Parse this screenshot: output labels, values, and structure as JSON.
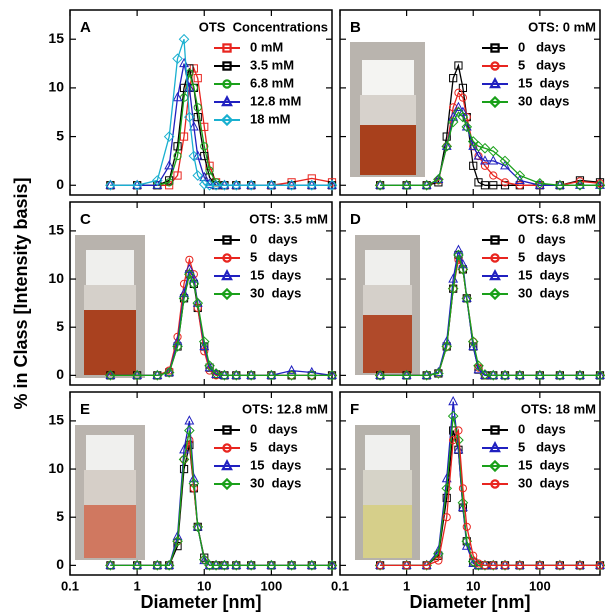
{
  "chart_data": [
    {
      "type": "line",
      "label": "A",
      "legend_title": "OTS  Concentrations",
      "log_x": true,
      "x": [
        0.4,
        1,
        2,
        3,
        4,
        5,
        6,
        7,
        8,
        10,
        12,
        15,
        20,
        30,
        50,
        100,
        200,
        400,
        800
      ],
      "xlim": [
        0.1,
        800
      ],
      "ylim": [
        -1,
        18
      ],
      "xticks": [
        0.1,
        1,
        10,
        100
      ],
      "yticks": [
        0,
        5,
        10,
        15
      ],
      "series": [
        {
          "name": "0 mM",
          "color": "#e8251f",
          "marker": "square",
          "values": [
            0,
            0,
            0,
            0,
            1,
            5,
            10,
            12,
            11,
            6,
            2,
            0.3,
            0,
            0,
            0,
            0,
            0.3,
            0.7,
            0.3
          ]
        },
        {
          "name": "3.5 mM",
          "color": "#000000",
          "marker": "square",
          "values": [
            0,
            0,
            0,
            0.5,
            4,
            10,
            12,
            10,
            7,
            3,
            0.8,
            0,
            0,
            0,
            0,
            0,
            0,
            0,
            0
          ]
        },
        {
          "name": "6.8 mM",
          "color": "#1aa01a",
          "marker": "circle",
          "values": [
            0,
            0,
            0,
            0.3,
            3,
            9,
            11.5,
            10,
            8,
            4,
            1.5,
            0.3,
            0,
            0,
            0,
            0,
            0,
            0,
            0
          ]
        },
        {
          "name": "12.8 mM",
          "color": "#2020c0",
          "marker": "triangle",
          "values": [
            0,
            0,
            0,
            2,
            9,
            12.5,
            10,
            6,
            3,
            0.8,
            0.1,
            0,
            0,
            0,
            0,
            0,
            0,
            0,
            0
          ]
        },
        {
          "name": "18 mM",
          "color": "#1ab0d0",
          "marker": "diamond",
          "values": [
            0,
            0,
            0.5,
            5,
            13,
            15,
            7,
            3,
            1,
            0.1,
            0,
            0,
            0,
            0,
            0,
            0,
            0,
            0,
            0
          ]
        }
      ]
    },
    {
      "type": "line",
      "label": "B",
      "legend_title": "OTS: 0 mM",
      "log_x": true,
      "x": [
        0.4,
        1,
        2,
        3,
        4,
        5,
        6,
        7,
        8,
        10,
        12,
        15,
        20,
        30,
        50,
        100,
        200,
        400,
        800
      ],
      "xlim": [
        0.1,
        800
      ],
      "ylim": [
        -1,
        18
      ],
      "xticks": [
        0.1,
        1,
        10,
        100
      ],
      "yticks": [
        0,
        5,
        10,
        15
      ],
      "series": [
        {
          "name": "0   days",
          "color": "#000000",
          "marker": "square",
          "values": [
            0,
            0,
            0,
            0.3,
            5,
            11,
            12.3,
            10,
            7,
            2,
            0.3,
            0,
            0,
            0,
            0,
            0,
            0,
            0.5,
            0.3
          ]
        },
        {
          "name": "5   days",
          "color": "#e8251f",
          "marker": "circle",
          "values": [
            0,
            0,
            0,
            0.5,
            4,
            8,
            9.5,
            9,
            7,
            4,
            3,
            2,
            1,
            0.3,
            0,
            0,
            0,
            0.4,
            0.2
          ]
        },
        {
          "name": "15  days",
          "color": "#2020c0",
          "marker": "triangle",
          "values": [
            0,
            0,
            0,
            0.6,
            4,
            7,
            8,
            7.5,
            6,
            4,
            3,
            2.5,
            2.5,
            2,
            0.5,
            0,
            0,
            0,
            0
          ]
        },
        {
          "name": "30  days",
          "color": "#1aa01a",
          "marker": "diamond",
          "values": [
            0,
            0,
            0,
            0.6,
            4,
            6.5,
            7.5,
            7,
            6,
            4.5,
            4,
            3.8,
            3.5,
            2.5,
            1,
            0.2,
            0,
            0,
            0
          ]
        }
      ]
    },
    {
      "type": "line",
      "label": "C",
      "legend_title": "OTS: 3.5 mM",
      "log_x": true,
      "ylabel": "% in Class [Intensity basis]",
      "x": [
        0.4,
        1,
        2,
        3,
        4,
        5,
        6,
        7,
        8,
        10,
        12,
        15,
        20,
        30,
        50,
        100,
        200,
        400,
        800
      ],
      "xlim": [
        0.1,
        800
      ],
      "ylim": [
        -1,
        18
      ],
      "xticks": [
        0.1,
        1,
        10,
        100
      ],
      "yticks": [
        0,
        5,
        10,
        15
      ],
      "series": [
        {
          "name": "0   days",
          "color": "#000000",
          "marker": "square",
          "values": [
            0,
            0,
            0,
            0.3,
            3,
            8,
            10.5,
            9.5,
            7,
            3,
            0.8,
            0.1,
            0,
            0,
            0,
            0,
            0,
            0,
            0
          ]
        },
        {
          "name": "5   days",
          "color": "#e8251f",
          "marker": "circle",
          "values": [
            0,
            0,
            0,
            0.5,
            4,
            9.5,
            12,
            10.5,
            7,
            2.5,
            0.5,
            0,
            0,
            0,
            0,
            0,
            0,
            0,
            0
          ]
        },
        {
          "name": "15  days",
          "color": "#2020c0",
          "marker": "triangle",
          "values": [
            0,
            0,
            0,
            0.3,
            3.5,
            8.5,
            11,
            10,
            7.5,
            3,
            0.8,
            0.1,
            0,
            0,
            0,
            0,
            0.5,
            0.3,
            0
          ]
        },
        {
          "name": "30  days",
          "color": "#1aa01a",
          "marker": "diamond",
          "values": [
            0,
            0,
            0,
            0.3,
            3,
            8,
            10.5,
            9.5,
            7.5,
            3.5,
            1,
            0.2,
            0,
            0,
            0,
            0,
            0,
            0,
            0
          ]
        }
      ]
    },
    {
      "type": "line",
      "label": "D",
      "legend_title": "OTS: 6.8 mM",
      "log_x": true,
      "x": [
        0.4,
        1,
        2,
        3,
        4,
        5,
        6,
        7,
        8,
        10,
        12,
        15,
        20,
        30,
        50,
        100,
        200,
        400,
        800
      ],
      "xlim": [
        0.1,
        800
      ],
      "ylim": [
        -1,
        18
      ],
      "xticks": [
        0.1,
        1,
        10,
        100
      ],
      "yticks": [
        0,
        5,
        10,
        15
      ],
      "series": [
        {
          "name": "0   days",
          "color": "#000000",
          "marker": "square",
          "values": [
            0,
            0,
            0,
            0.2,
            3,
            9,
            12.5,
            11,
            8,
            3,
            0.6,
            0,
            0,
            0,
            0,
            0,
            0,
            0,
            0
          ]
        },
        {
          "name": "5   days",
          "color": "#e8251f",
          "marker": "circle",
          "values": [
            0,
            0,
            0,
            0.2,
            3,
            9,
            12,
            11,
            8,
            3.5,
            0.8,
            0,
            0,
            0,
            0,
            0,
            0,
            0,
            0
          ]
        },
        {
          "name": "15  days",
          "color": "#2020c0",
          "marker": "triangle",
          "values": [
            0,
            0,
            0,
            0.3,
            3.5,
            10,
            13,
            11.5,
            8,
            3,
            0.6,
            0,
            0,
            0,
            0,
            0,
            0,
            0,
            0
          ]
        },
        {
          "name": "30  days",
          "color": "#1aa01a",
          "marker": "diamond",
          "values": [
            0,
            0,
            0,
            0.2,
            3,
            9,
            12.5,
            11,
            8,
            3.5,
            1,
            0.1,
            0,
            0,
            0,
            0,
            0,
            0,
            0
          ]
        }
      ]
    },
    {
      "type": "line",
      "label": "E",
      "legend_title": "OTS: 12.8 mM",
      "log_x": true,
      "xlabel": "Diameter [nm]",
      "x": [
        0.4,
        1,
        2,
        3,
        4,
        5,
        6,
        7,
        8,
        10,
        12,
        15,
        20,
        30,
        50,
        100,
        200,
        400,
        800
      ],
      "xlim": [
        0.1,
        800
      ],
      "ylim": [
        -1,
        18
      ],
      "xticks": [
        0.1,
        1,
        10,
        100
      ],
      "yticks": [
        0,
        5,
        10,
        15
      ],
      "series": [
        {
          "name": "0   days",
          "color": "#000000",
          "marker": "square",
          "values": [
            0,
            0,
            0,
            0,
            2,
            10,
            12.5,
            8,
            4,
            0.8,
            0,
            0,
            0,
            0,
            0,
            0,
            0,
            0,
            0
          ]
        },
        {
          "name": "5   days",
          "color": "#e8251f",
          "marker": "circle",
          "values": [
            0,
            0,
            0,
            0,
            2.5,
            11,
            13,
            8,
            4,
            0.6,
            0,
            0,
            0,
            0,
            0,
            0,
            0,
            0,
            0
          ]
        },
        {
          "name": "15  days",
          "color": "#2020c0",
          "marker": "triangle",
          "values": [
            0,
            0,
            0,
            0,
            3,
            12,
            15,
            9,
            4,
            0.5,
            0,
            0,
            0,
            0,
            0,
            0,
            0,
            0,
            0
          ]
        },
        {
          "name": "30  days",
          "color": "#1aa01a",
          "marker": "diamond",
          "values": [
            0,
            0,
            0,
            0,
            2.5,
            11,
            14,
            8.5,
            4,
            0.6,
            0,
            0,
            0,
            0,
            0,
            0,
            0,
            0,
            0
          ]
        }
      ]
    },
    {
      "type": "line",
      "label": "F",
      "legend_title": "OTS: 18 mM",
      "log_x": true,
      "xlabel": "Diameter [nm]",
      "x": [
        0.4,
        1,
        2,
        3,
        4,
        5,
        6,
        7,
        8,
        10,
        12,
        15,
        20,
        30,
        50,
        100,
        200,
        400,
        800
      ],
      "xlim": [
        0.1,
        800
      ],
      "ylim": [
        -1,
        18
      ],
      "xticks": [
        0.1,
        1,
        10,
        100
      ],
      "yticks": [
        0,
        5,
        10,
        15
      ],
      "series": [
        {
          "name": "0   days",
          "color": "#000000",
          "marker": "square",
          "values": [
            0,
            0,
            0,
            1,
            7,
            14,
            12,
            6,
            2.5,
            0.3,
            0,
            0,
            0,
            0,
            0,
            0,
            0,
            0,
            0
          ]
        },
        {
          "name": "5   days",
          "color": "#2020c0",
          "marker": "triangle",
          "values": [
            0,
            0,
            0,
            1.5,
            9,
            17,
            12,
            6,
            2,
            0.2,
            0,
            0,
            0,
            0,
            0,
            0,
            0,
            0,
            0
          ]
        },
        {
          "name": "15  days",
          "color": "#1aa01a",
          "marker": "diamond",
          "values": [
            0,
            0,
            0,
            1.2,
            8,
            15.5,
            13,
            6.5,
            2.5,
            0.4,
            0,
            0,
            0,
            0,
            0,
            0,
            0,
            0,
            0
          ]
        },
        {
          "name": "30  days",
          "color": "#e8251f",
          "marker": "circle",
          "values": [
            0,
            0,
            0,
            0.5,
            5,
            13,
            14,
            8,
            4,
            1,
            0.2,
            0,
            0,
            0,
            0,
            0,
            0,
            0,
            0
          ]
        }
      ]
    }
  ]
}
